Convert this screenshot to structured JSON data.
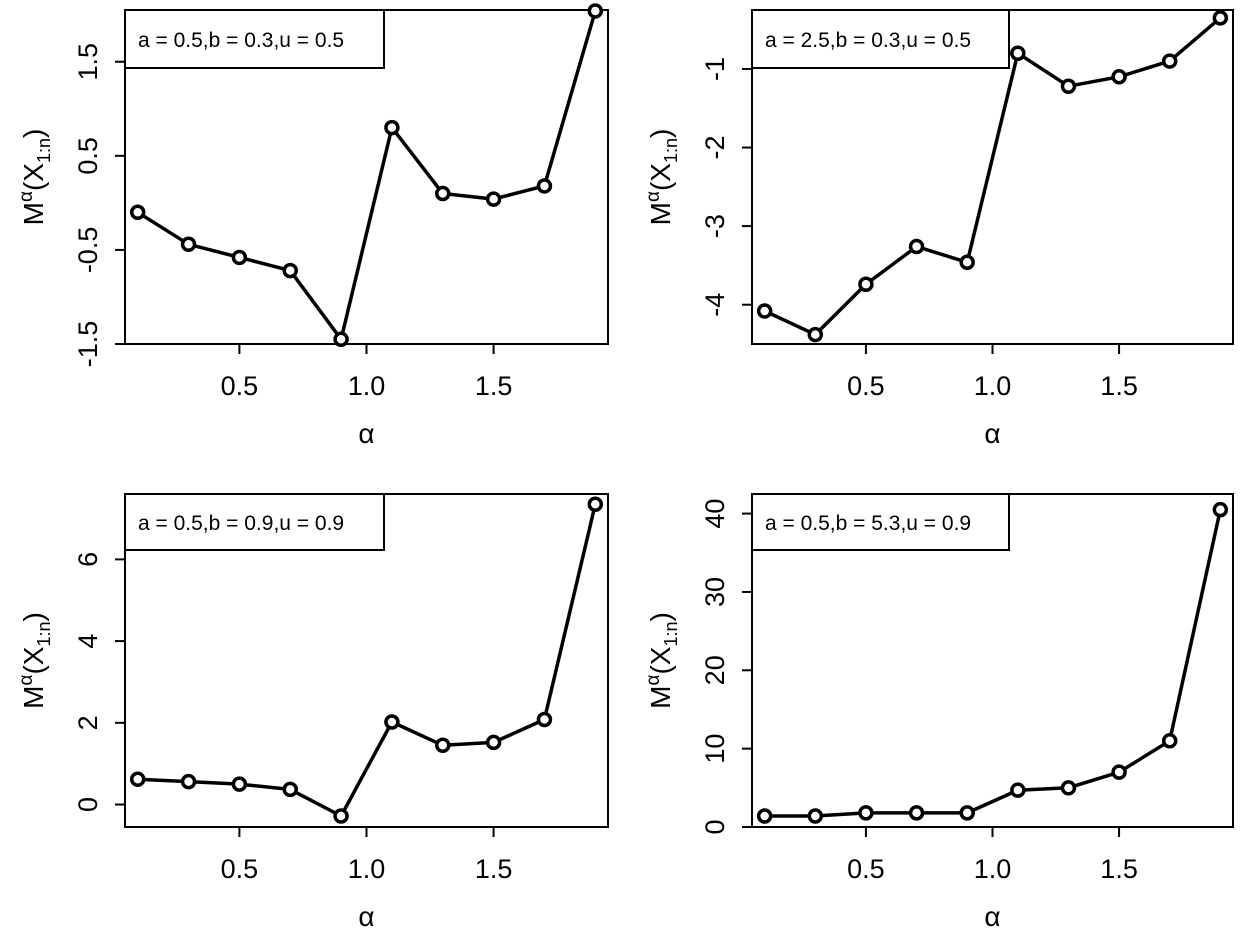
{
  "figure": {
    "panels": [
      {
        "legend": "a = 0.5,b = 0.3,u = 0.5",
        "xlabel": "α",
        "ylabel_main": "M",
        "ylabel_sup": "α",
        "ylabel_rest": "(X",
        "ylabel_sub": "1:n",
        "ylabel_close": ")"
      },
      {
        "legend": "a = 2.5,b = 0.3,u = 0.5",
        "xlabel": "α",
        "ylabel_main": "M",
        "ylabel_sup": "α",
        "ylabel_rest": "(X",
        "ylabel_sub": "1:n",
        "ylabel_close": ")"
      },
      {
        "legend": "a = 0.5,b = 0.9,u = 0.9",
        "xlabel": "α",
        "ylabel_main": "M",
        "ylabel_sup": "α",
        "ylabel_rest": "(X",
        "ylabel_sub": "1:n",
        "ylabel_close": ")"
      },
      {
        "legend": "a = 0.5,b = 5.3,u = 0.9",
        "xlabel": "α",
        "ylabel_main": "M",
        "ylabel_sup": "α",
        "ylabel_rest": "(X",
        "ylabel_sub": "1:n",
        "ylabel_close": ")"
      }
    ]
  },
  "chart_data": [
    {
      "type": "line",
      "title": "",
      "legend": "a = 0.5,b = 0.3,u = 0.5",
      "xlabel": "α",
      "ylabel": "M^α(X_1:n)",
      "x": [
        0.1,
        0.3,
        0.5,
        0.7,
        0.9,
        1.1,
        1.3,
        1.5,
        1.7,
        1.9
      ],
      "values": [
        -0.1,
        -0.44,
        -0.58,
        -0.72,
        -1.45,
        0.8,
        0.1,
        0.04,
        0.18,
        2.04
      ],
      "xlim": [
        0.05,
        1.95
      ],
      "ylim": [
        -1.5,
        2.05
      ],
      "xticks": [
        0.5,
        1.0,
        1.5
      ],
      "xtick_labels": [
        "0.5",
        "1.0",
        "1.5"
      ],
      "yticks": [
        -1.5,
        -0.5,
        0.5,
        1.5
      ],
      "ytick_labels": [
        "-1.5",
        "-0.5",
        "0.5",
        "1.5"
      ],
      "grid": false,
      "legend_position": "top-left"
    },
    {
      "type": "line",
      "title": "",
      "legend": "a = 2.5,b = 0.3,u = 0.5",
      "xlabel": "α",
      "ylabel": "M^α(X_1:n)",
      "x": [
        0.1,
        0.3,
        0.5,
        0.7,
        0.9,
        1.1,
        1.3,
        1.5,
        1.7,
        1.9
      ],
      "values": [
        -4.08,
        -4.38,
        -3.74,
        -3.26,
        -3.46,
        -0.8,
        -1.22,
        -1.1,
        -0.9,
        -0.35
      ],
      "xlim": [
        0.05,
        1.95
      ],
      "ylim": [
        -4.5,
        -0.25
      ],
      "xticks": [
        0.5,
        1.0,
        1.5
      ],
      "xtick_labels": [
        "0.5",
        "1.0",
        "1.5"
      ],
      "yticks": [
        -4,
        -3,
        -2,
        -1
      ],
      "ytick_labels": [
        "-4",
        "-3",
        "-2",
        "-1"
      ],
      "grid": false,
      "legend_position": "top-left"
    },
    {
      "type": "line",
      "title": "",
      "legend": "a = 0.5,b = 0.9,u = 0.9",
      "xlabel": "α",
      "ylabel": "M^α(X_1:n)",
      "x": [
        0.1,
        0.3,
        0.5,
        0.7,
        0.9,
        1.1,
        1.3,
        1.5,
        1.7,
        1.9
      ],
      "values": [
        0.62,
        0.56,
        0.5,
        0.37,
        -0.28,
        2.02,
        1.45,
        1.52,
        2.08,
        7.35
      ],
      "xlim": [
        0.05,
        1.95
      ],
      "ylim": [
        -0.55,
        7.6
      ],
      "xticks": [
        0.5,
        1.0,
        1.5
      ],
      "xtick_labels": [
        "0.5",
        "1.0",
        "1.5"
      ],
      "yticks": [
        0,
        2,
        4,
        6
      ],
      "ytick_labels": [
        "0",
        "2",
        "4",
        "6"
      ],
      "grid": false,
      "legend_position": "top-left"
    },
    {
      "type": "line",
      "title": "",
      "legend": "a = 0.5,b = 5.3,u = 0.9",
      "xlabel": "α",
      "ylabel": "M^α(X_1:n)",
      "x": [
        0.1,
        0.3,
        0.5,
        0.7,
        0.9,
        1.1,
        1.3,
        1.5,
        1.7,
        1.9
      ],
      "values": [
        1.4,
        1.4,
        1.8,
        1.8,
        1.8,
        4.7,
        5.0,
        7.0,
        11.0,
        40.5
      ],
      "xlim": [
        0.05,
        1.95
      ],
      "ylim": [
        0.0,
        42.5
      ],
      "xticks": [
        0.5,
        1.0,
        1.5
      ],
      "xtick_labels": [
        "0.5",
        "1.0",
        "1.5"
      ],
      "yticks": [
        0,
        10,
        20,
        30,
        40
      ],
      "ytick_labels": [
        "0",
        "10",
        "20",
        "30",
        "40"
      ],
      "grid": false,
      "legend_position": "top-left"
    }
  ]
}
